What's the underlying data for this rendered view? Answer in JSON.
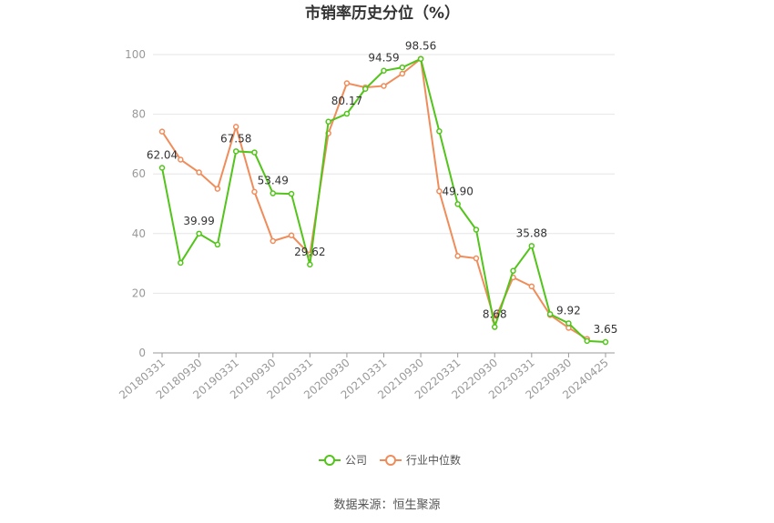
{
  "chart_data": {
    "type": "line",
    "title": "市销率历史分位（%）",
    "xlabel": "",
    "ylabel": "",
    "ylim": [
      0,
      100
    ],
    "yticks": [
      "0",
      "20",
      "40",
      "60",
      "80",
      "100"
    ],
    "grid": true,
    "legend_position": "bottom",
    "x_tick_labels": [
      "20180331",
      "20180930",
      "20190331",
      "20190930",
      "20200331",
      "20200930",
      "20210331",
      "20210930",
      "20220331",
      "20220930",
      "20230331",
      "20230930",
      "20240425"
    ],
    "series": [
      {
        "name": "公司",
        "color": "#52c41a",
        "values": [
          62.04,
          30.2,
          39.99,
          36.3,
          67.58,
          67.2,
          53.49,
          53.3,
          29.62,
          77.5,
          80.17,
          88.5,
          94.59,
          95.7,
          98.56,
          74.3,
          49.9,
          41.3,
          8.68,
          27.5,
          35.88,
          13.0,
          9.92,
          4.0,
          3.65
        ],
        "labels": [
          "62.04",
          "",
          "39.99",
          "",
          "67.58",
          "",
          "53.49",
          "",
          "29.62",
          "",
          "80.17",
          "",
          "94.59",
          "",
          "98.56",
          "",
          "49.90",
          "",
          "8.68",
          "",
          "35.88",
          "",
          "9.92",
          "",
          "3.65"
        ]
      },
      {
        "name": "行业中位数",
        "color": "#f08c5a",
        "values": [
          74.2,
          64.8,
          60.5,
          55.0,
          75.8,
          54.0,
          37.5,
          39.4,
          33.0,
          73.6,
          90.4,
          89.0,
          89.5,
          93.6,
          98.6,
          54.2,
          32.5,
          31.7,
          11.0,
          25.3,
          22.3,
          12.7,
          8.4,
          4.7,
          null
        ],
        "labels": []
      }
    ]
  },
  "legend": [
    {
      "label": "公司",
      "color": "#52c41a"
    },
    {
      "label": "行业中位数",
      "color": "#f08c5a"
    }
  ],
  "source": "数据来源：恒生聚源"
}
